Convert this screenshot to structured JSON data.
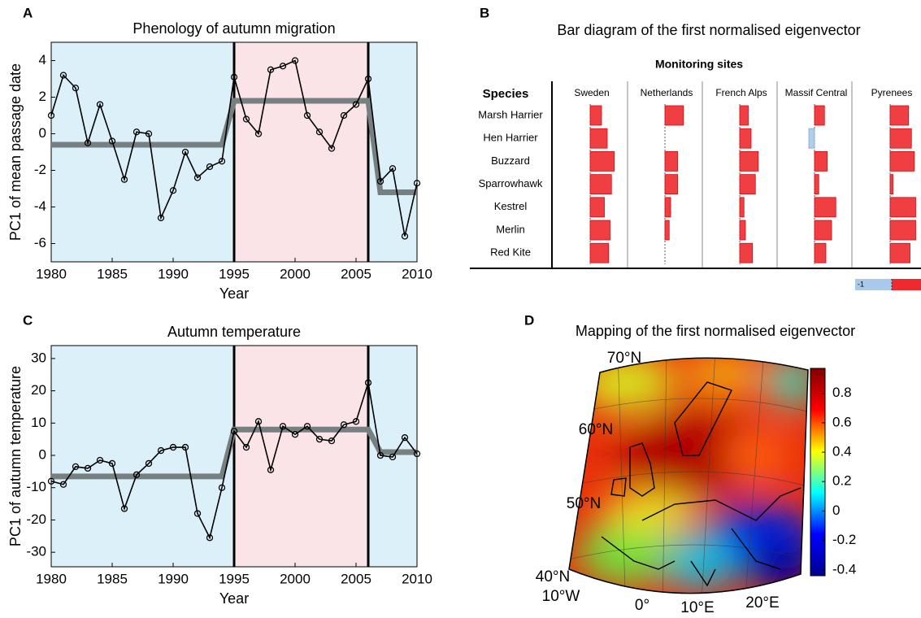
{
  "chart_data": [
    {
      "type": "line",
      "panel": "A",
      "title": "Phenology of autumn migration",
      "xlabel": "Year",
      "ylabel": "PC1 of mean passage date",
      "x": [
        1980,
        1981,
        1982,
        1983,
        1984,
        1985,
        1986,
        1987,
        1988,
        1989,
        1990,
        1991,
        1992,
        1993,
        1994,
        1995,
        1996,
        1997,
        1998,
        1999,
        2000,
        2001,
        2002,
        2003,
        2004,
        2005,
        2006,
        2007,
        2008,
        2009,
        2010
      ],
      "values": [
        1.0,
        3.2,
        2.5,
        -0.5,
        1.6,
        -0.4,
        -2.5,
        0.1,
        0.0,
        -4.6,
        -3.1,
        -1.0,
        -2.4,
        -1.8,
        -1.5,
        3.1,
        0.8,
        0.0,
        3.5,
        3.7,
        4.0,
        1.0,
        0.1,
        -0.8,
        1.0,
        1.6,
        3.0,
        -2.6,
        -1.9,
        -5.6,
        -2.7
      ],
      "trend": {
        "x": [
          1980,
          1994,
          1995,
          2006,
          2007,
          2010
        ],
        "values": [
          -0.6,
          -0.6,
          1.8,
          1.8,
          -3.2,
          -3.2
        ],
        "color": "#778080"
      },
      "periods": [
        {
          "start": 1980,
          "end": 1995,
          "color": "#dcf0fa"
        },
        {
          "start": 1995,
          "end": 2006,
          "color": "#fae4e7"
        },
        {
          "start": 2006,
          "end": 2010,
          "color": "#dcf0fa"
        }
      ],
      "breaks": [
        1995,
        2006
      ],
      "xlim": [
        1980,
        2010
      ],
      "ylim": [
        -7,
        5
      ],
      "xticks": [
        1980,
        1985,
        1990,
        1995,
        2000,
        2005,
        2010
      ],
      "yticks": [
        -6,
        -4,
        -2,
        0,
        2,
        4
      ]
    },
    {
      "type": "bar-matrix",
      "panel": "B",
      "title": "Bar diagram of the first normalised eigenvector",
      "subtitle": "Monitoring sites",
      "row_header": "Species",
      "categories": [
        "Marsh Harrier",
        "Hen Harrier",
        "Buzzard",
        "Sparrowhawk",
        "Kestrel",
        "Merlin",
        "Red Kite"
      ],
      "series": [
        {
          "name": "Sweden",
          "values": [
            0.4,
            0.6,
            0.85,
            0.75,
            0.5,
            0.7,
            0.65
          ]
        },
        {
          "name": "Netherlands",
          "values": [
            0.65,
            0,
            0.45,
            0.45,
            0.2,
            0.15,
            0
          ]
        },
        {
          "name": "French Alps",
          "values": [
            0.3,
            0.4,
            0.65,
            0.55,
            0.15,
            0.2,
            0.45
          ]
        },
        {
          "name": "Massif Central",
          "values": [
            0.35,
            -0.2,
            0.45,
            0.15,
            0.75,
            0.6,
            0.4
          ]
        },
        {
          "name": "Pyrenees",
          "values": [
            0.65,
            0.75,
            0.85,
            0.1,
            0.9,
            0.9,
            0.7
          ]
        }
      ],
      "color": "#ee2a2e",
      "negative_color": "#a9c8ea",
      "xlim": [
        -1,
        1
      ],
      "colorbar_ticks": [
        -1
      ]
    },
    {
      "type": "line",
      "panel": "C",
      "title": "Autumn temperature",
      "xlabel": "Year",
      "ylabel": "PC1 of autumn temperature",
      "x": [
        1980,
        1981,
        1982,
        1983,
        1984,
        1985,
        1986,
        1987,
        1988,
        1989,
        1990,
        1991,
        1992,
        1993,
        1994,
        1995,
        1996,
        1997,
        1998,
        1999,
        2000,
        2001,
        2002,
        2003,
        2004,
        2005,
        2006,
        2007,
        2008,
        2009,
        2010
      ],
      "values": [
        -8,
        -9,
        -3.5,
        -4,
        -1.5,
        -2.5,
        -16.5,
        -6,
        -2.5,
        1.5,
        2.5,
        2.5,
        -18,
        -25.5,
        -10,
        7.5,
        2.5,
        10.5,
        -4.5,
        9,
        6.5,
        9,
        5,
        4.5,
        9.5,
        10.5,
        22.5,
        0,
        -0.5,
        5.5,
        0.5
      ],
      "trend": {
        "x": [
          1980,
          1994,
          1995,
          2006,
          2007,
          2010
        ],
        "values": [
          -6.5,
          -6.5,
          8,
          8,
          1,
          1
        ],
        "color": "#778080"
      },
      "periods": [
        {
          "start": 1980,
          "end": 1995,
          "color": "#dcf0fa"
        },
        {
          "start": 1995,
          "end": 2006,
          "color": "#fae4e7"
        },
        {
          "start": 2006,
          "end": 2010,
          "color": "#dcf0fa"
        }
      ],
      "breaks": [
        1995,
        2006
      ],
      "xlim": [
        1980,
        2010
      ],
      "ylim": [
        -34.5,
        34
      ],
      "xticks": [
        1980,
        1985,
        1990,
        1995,
        2000,
        2005,
        2010
      ],
      "yticks": [
        -30,
        -20,
        -10,
        0,
        10,
        20,
        30
      ]
    },
    {
      "type": "map",
      "panel": "D",
      "title": "Mapping of the first normalised eigenvector",
      "lat_labels": [
        "70°N",
        "60°N",
        "50°N",
        "40°N"
      ],
      "lon_labels": [
        "10°W",
        "0°",
        "10°E",
        "20°E"
      ],
      "colormap": "jet",
      "clim": [
        -0.44,
        0.97
      ],
      "cticks": [
        -0.4,
        -0.2,
        0,
        0.2,
        0.4,
        0.6,
        0.8
      ]
    }
  ]
}
